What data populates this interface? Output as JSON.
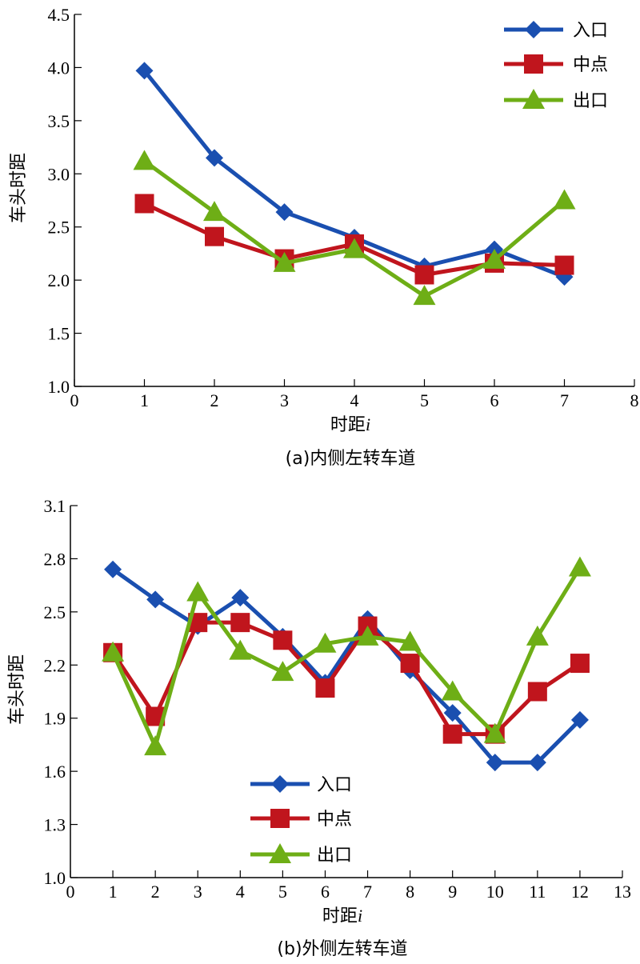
{
  "chart_data": [
    {
      "type": "line",
      "caption": "(a)内侧左转车道",
      "xlabel": "时距",
      "xlabel_var": "i",
      "ylabel": "车头时距",
      "xlim": [
        0,
        8
      ],
      "ylim": [
        1.0,
        4.5
      ],
      "xticks": [
        0,
        1,
        2,
        3,
        4,
        5,
        6,
        7,
        8
      ],
      "yticks": [
        "1.0",
        "1.5",
        "2.0",
        "2.5",
        "3.0",
        "3.5",
        "4.0",
        "4.5"
      ],
      "x": [
        1,
        2,
        3,
        4,
        5,
        6,
        7
      ],
      "legend_position": "top-right",
      "grid": false,
      "series": [
        {
          "name": "入口",
          "color": "#1a4fb0",
          "marker": "diamond",
          "values": [
            3.97,
            3.15,
            2.64,
            2.4,
            2.13,
            2.29,
            2.03
          ]
        },
        {
          "name": "中点",
          "color": "#c0151d",
          "marker": "square",
          "values": [
            2.72,
            2.41,
            2.2,
            2.34,
            2.05,
            2.16,
            2.14
          ]
        },
        {
          "name": "出口",
          "color": "#6eae16",
          "marker": "triangle",
          "values": [
            3.12,
            2.64,
            2.16,
            2.29,
            1.85,
            2.19,
            2.75
          ]
        }
      ]
    },
    {
      "type": "line",
      "caption": "(b)外侧左转车道",
      "xlabel": "时距",
      "xlabel_var": "i",
      "ylabel": "车头时距",
      "xlim": [
        0,
        13
      ],
      "ylim": [
        1.0,
        3.1
      ],
      "xticks": [
        0,
        1,
        2,
        3,
        4,
        5,
        6,
        7,
        8,
        9,
        10,
        11,
        12,
        13
      ],
      "yticks": [
        "1.0",
        "1.3",
        "1.6",
        "1.9",
        "2.2",
        "2.5",
        "2.8",
        "3.1"
      ],
      "x": [
        1,
        2,
        3,
        4,
        5,
        6,
        7,
        8,
        9,
        10,
        11,
        12
      ],
      "legend_position": "bottom-center",
      "grid": false,
      "series": [
        {
          "name": "入口",
          "color": "#1a4fb0",
          "marker": "diamond",
          "values": [
            2.74,
            2.57,
            2.42,
            2.58,
            2.36,
            2.1,
            2.46,
            2.17,
            1.93,
            1.65,
            1.65,
            1.89
          ]
        },
        {
          "name": "中点",
          "color": "#c0151d",
          "marker": "square",
          "values": [
            2.27,
            1.91,
            2.44,
            2.44,
            2.34,
            2.07,
            2.42,
            2.21,
            1.81,
            1.81,
            2.05,
            2.21
          ]
        },
        {
          "name": "出口",
          "color": "#6eae16",
          "marker": "triangle",
          "values": [
            2.27,
            1.74,
            2.61,
            2.28,
            2.16,
            2.32,
            2.36,
            2.33,
            2.05,
            1.81,
            2.36,
            2.75
          ]
        }
      ]
    }
  ]
}
